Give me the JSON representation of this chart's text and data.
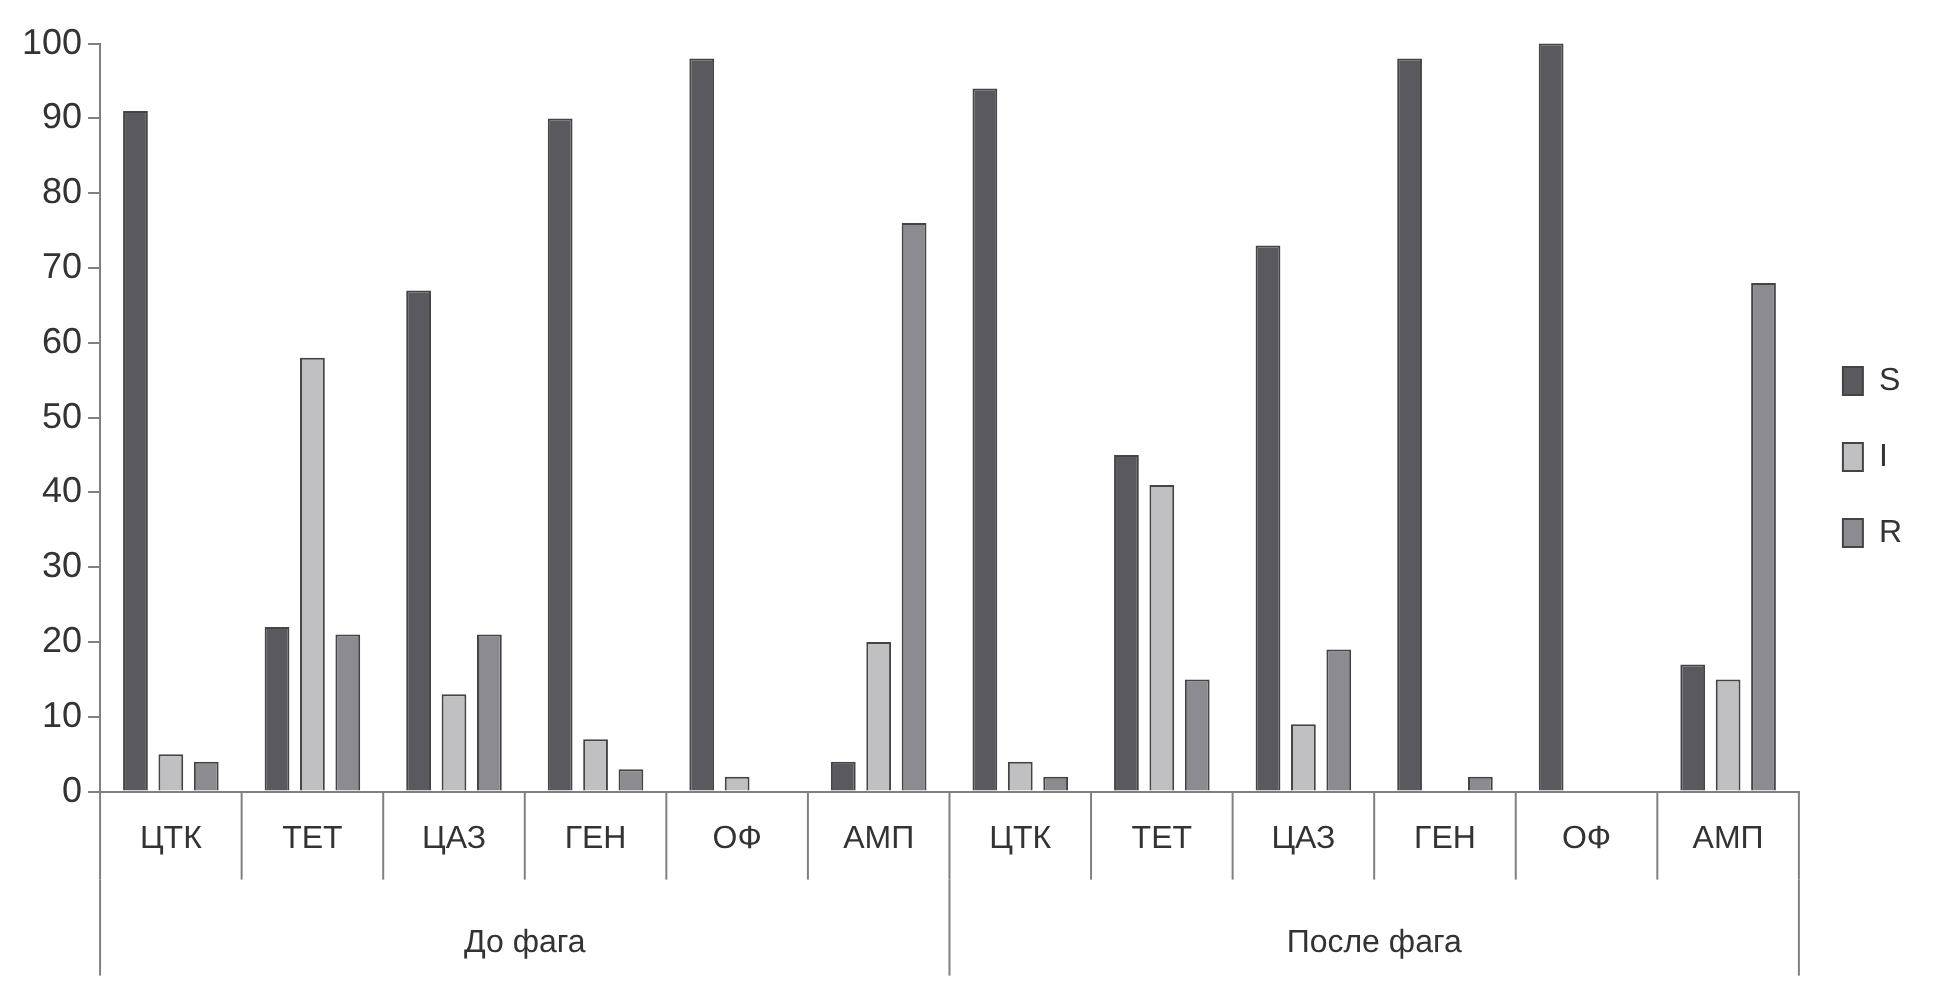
{
  "chart_data": {
    "type": "bar",
    "categories": [
      "ЦТК",
      "ТЕТ",
      "ЦАЗ",
      "ГЕН",
      "ОФ",
      "АМП",
      "ЦТК",
      "ТЕТ",
      "ЦАЗ",
      "ГЕН",
      "ОФ",
      "АМП"
    ],
    "series": [
      {
        "name": "S",
        "color": "#5a5a5e",
        "values": [
          91,
          22,
          67,
          90,
          98,
          4,
          94,
          45,
          73,
          98,
          100,
          17
        ]
      },
      {
        "name": "I",
        "color": "#c0c0c2",
        "values": [
          5,
          58,
          13,
          7,
          2,
          20,
          4,
          41,
          9,
          0,
          0,
          15
        ]
      },
      {
        "name": "R",
        "color": "#8c8c90",
        "values": [
          4,
          21,
          21,
          3,
          0,
          76,
          2,
          15,
          19,
          2,
          0,
          68
        ]
      }
    ],
    "annotations": [
      "До фага",
      "После фага"
    ],
    "ylim": [
      0,
      100
    ],
    "yticks": [
      0,
      10,
      20,
      30,
      40,
      50,
      60,
      70,
      80,
      90,
      100
    ],
    "grid": false,
    "legend": "right"
  }
}
